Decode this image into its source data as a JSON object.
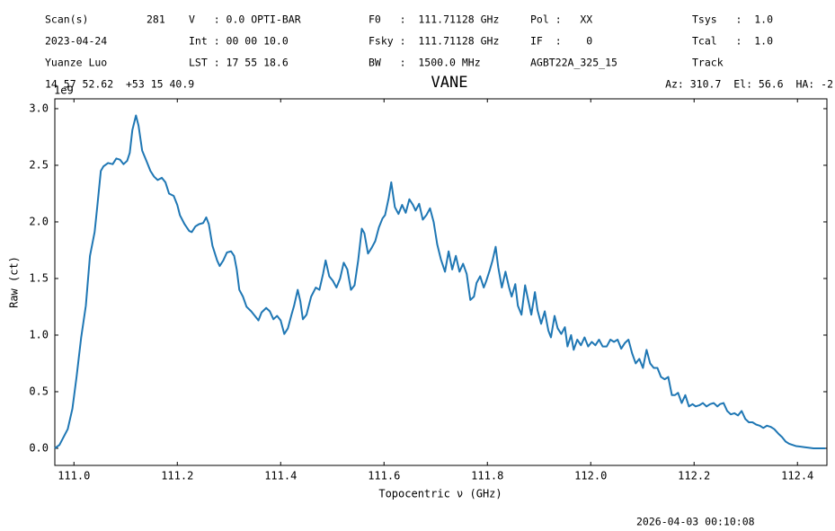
{
  "header": {
    "rows": [
      [
        "Scan(s)",
        "281",
        "V   : 0.0 OPTI-BAR",
        "F0   :  111.71128 GHz",
        "Pol :   XX",
        "Tsys   :  1.0"
      ],
      [
        "2023-04-24",
        "Int : 00 00 10.0",
        "Fsky :  111.71128 GHz",
        "IF  :    0",
        "Tcal   :  1.0"
      ],
      [
        "Yuanze Luo",
        "LST : 17 55 18.6",
        "BW   :  1500.0 MHz",
        "AGBT22A_325_15",
        "Track"
      ],
      [
        "14 57 52.62  +53 15 40.9",
        "Az: 310.7  El: 56.6  HA: -2"
      ]
    ]
  },
  "footer": {
    "timestamp": "2026-04-03 00:10:08"
  },
  "chart_data": {
    "type": "line",
    "title": "VANE",
    "x_label": "Topocentric ν (GHz)",
    "y_label": "Raw (ct)",
    "y_offset_label": "1e9",
    "x": [
      110.963,
      110.972,
      110.988,
      110.997,
      111.005,
      111.014,
      111.023,
      111.031,
      111.04,
      111.045,
      111.052,
      111.057,
      111.066,
      111.075,
      111.082,
      111.089,
      111.096,
      111.103,
      111.108,
      111.113,
      111.12,
      111.125,
      111.132,
      111.141,
      111.148,
      111.155,
      111.162,
      111.17,
      111.177,
      111.184,
      111.193,
      111.2,
      111.205,
      111.214,
      111.223,
      111.228,
      111.235,
      111.242,
      111.25,
      111.256,
      111.261,
      111.268,
      111.277,
      111.282,
      111.289,
      111.296,
      111.304,
      111.31,
      111.315,
      111.32,
      111.327,
      111.334,
      111.343,
      111.35,
      111.357,
      111.363,
      111.372,
      111.379,
      111.386,
      111.393,
      111.4,
      111.407,
      111.414,
      111.421,
      111.426,
      111.433,
      111.438,
      111.443,
      111.45,
      111.459,
      111.468,
      111.475,
      111.482,
      111.487,
      111.494,
      111.501,
      111.508,
      111.515,
      111.522,
      111.529,
      111.536,
      111.543,
      111.55,
      111.557,
      111.562,
      111.569,
      111.576,
      111.583,
      111.59,
      111.597,
      111.602,
      111.609,
      111.614,
      111.621,
      111.628,
      111.635,
      111.642,
      111.649,
      111.656,
      111.661,
      111.668,
      111.675,
      111.682,
      111.689,
      111.696,
      111.703,
      111.71,
      111.718,
      111.725,
      111.732,
      111.739,
      111.746,
      111.753,
      111.76,
      111.767,
      111.774,
      111.779,
      111.786,
      111.793,
      111.798,
      111.805,
      111.81,
      111.816,
      111.821,
      111.828,
      111.835,
      111.842,
      111.847,
      111.854,
      111.859,
      111.866,
      111.873,
      111.878,
      111.885,
      111.892,
      111.897,
      111.904,
      111.911,
      111.918,
      111.923,
      111.93,
      111.936,
      111.943,
      111.95,
      111.955,
      111.962,
      111.967,
      111.974,
      111.981,
      111.988,
      111.995,
      112.002,
      112.009,
      112.016,
      112.023,
      112.031,
      112.038,
      112.045,
      112.052,
      112.059,
      112.066,
      112.073,
      112.08,
      112.087,
      112.094,
      112.101,
      112.108,
      112.115,
      112.122,
      112.129,
      112.136,
      112.143,
      112.15,
      112.157,
      112.163,
      112.169,
      112.176,
      112.183,
      112.19,
      112.197,
      112.203,
      112.21,
      112.217,
      112.224,
      112.231,
      112.238,
      112.245,
      112.25,
      112.257,
      112.264,
      112.271,
      112.278,
      112.285,
      112.292,
      112.299,
      112.306,
      112.313,
      112.32,
      112.327,
      112.334,
      112.341,
      112.348,
      112.355,
      112.363,
      112.37,
      112.377,
      112.384,
      112.397,
      112.414,
      112.431,
      112.454
    ],
    "series": [
      {
        "color": "#1f77b4",
        "values": [
          0.0,
          0.03,
          0.17,
          0.35,
          0.63,
          0.98,
          1.26,
          1.7,
          1.91,
          2.13,
          2.45,
          2.49,
          2.52,
          2.51,
          2.56,
          2.55,
          2.51,
          2.54,
          2.61,
          2.81,
          2.94,
          2.85,
          2.63,
          2.53,
          2.45,
          2.4,
          2.37,
          2.39,
          2.35,
          2.25,
          2.23,
          2.15,
          2.06,
          1.98,
          1.92,
          1.91,
          1.96,
          1.98,
          1.99,
          2.04,
          1.98,
          1.79,
          1.66,
          1.61,
          1.66,
          1.73,
          1.74,
          1.7,
          1.58,
          1.4,
          1.34,
          1.25,
          1.21,
          1.17,
          1.13,
          1.2,
          1.24,
          1.21,
          1.14,
          1.17,
          1.13,
          1.01,
          1.06,
          1.18,
          1.26,
          1.4,
          1.3,
          1.14,
          1.18,
          1.34,
          1.42,
          1.4,
          1.54,
          1.66,
          1.52,
          1.48,
          1.42,
          1.5,
          1.64,
          1.58,
          1.4,
          1.44,
          1.66,
          1.94,
          1.9,
          1.72,
          1.77,
          1.83,
          1.95,
          2.03,
          2.06,
          2.21,
          2.35,
          2.13,
          2.07,
          2.15,
          2.08,
          2.2,
          2.15,
          2.1,
          2.16,
          2.02,
          2.06,
          2.12,
          2.0,
          1.8,
          1.67,
          1.56,
          1.74,
          1.58,
          1.7,
          1.56,
          1.63,
          1.54,
          1.31,
          1.34,
          1.46,
          1.52,
          1.42,
          1.48,
          1.58,
          1.66,
          1.78,
          1.6,
          1.42,
          1.56,
          1.42,
          1.34,
          1.45,
          1.26,
          1.18,
          1.44,
          1.33,
          1.18,
          1.38,
          1.22,
          1.1,
          1.21,
          1.04,
          0.98,
          1.17,
          1.06,
          1.01,
          1.07,
          0.9,
          1.0,
          0.87,
          0.96,
          0.91,
          0.98,
          0.9,
          0.94,
          0.91,
          0.96,
          0.9,
          0.9,
          0.96,
          0.94,
          0.96,
          0.88,
          0.93,
          0.96,
          0.84,
          0.75,
          0.79,
          0.71,
          0.87,
          0.75,
          0.71,
          0.71,
          0.63,
          0.61,
          0.63,
          0.47,
          0.47,
          0.49,
          0.4,
          0.47,
          0.37,
          0.39,
          0.37,
          0.38,
          0.4,
          0.37,
          0.39,
          0.4,
          0.37,
          0.39,
          0.4,
          0.33,
          0.3,
          0.31,
          0.29,
          0.33,
          0.26,
          0.23,
          0.23,
          0.21,
          0.2,
          0.18,
          0.2,
          0.19,
          0.17,
          0.13,
          0.1,
          0.06,
          0.04,
          0.02,
          0.01,
          0.0,
          0.0
        ]
      }
    ],
    "xlim": [
      110.963,
      112.457
    ],
    "ylim": [
      -0.151,
      3.087
    ],
    "xticks": [
      {
        "value": 111,
        "label": "111.0"
      },
      111.2,
      111.4,
      111.6,
      111.8,
      {
        "value": 112,
        "label": "112.0"
      },
      112.2,
      112.4
    ],
    "yticks": [
      {
        "value": 0,
        "label": "0.0"
      },
      0.5,
      {
        "value": 1,
        "label": "1.0"
      },
      1.5,
      {
        "value": 2,
        "label": "2.0"
      },
      2.5,
      {
        "value": 3,
        "label": "3.0"
      }
    ],
    "grid": false
  }
}
